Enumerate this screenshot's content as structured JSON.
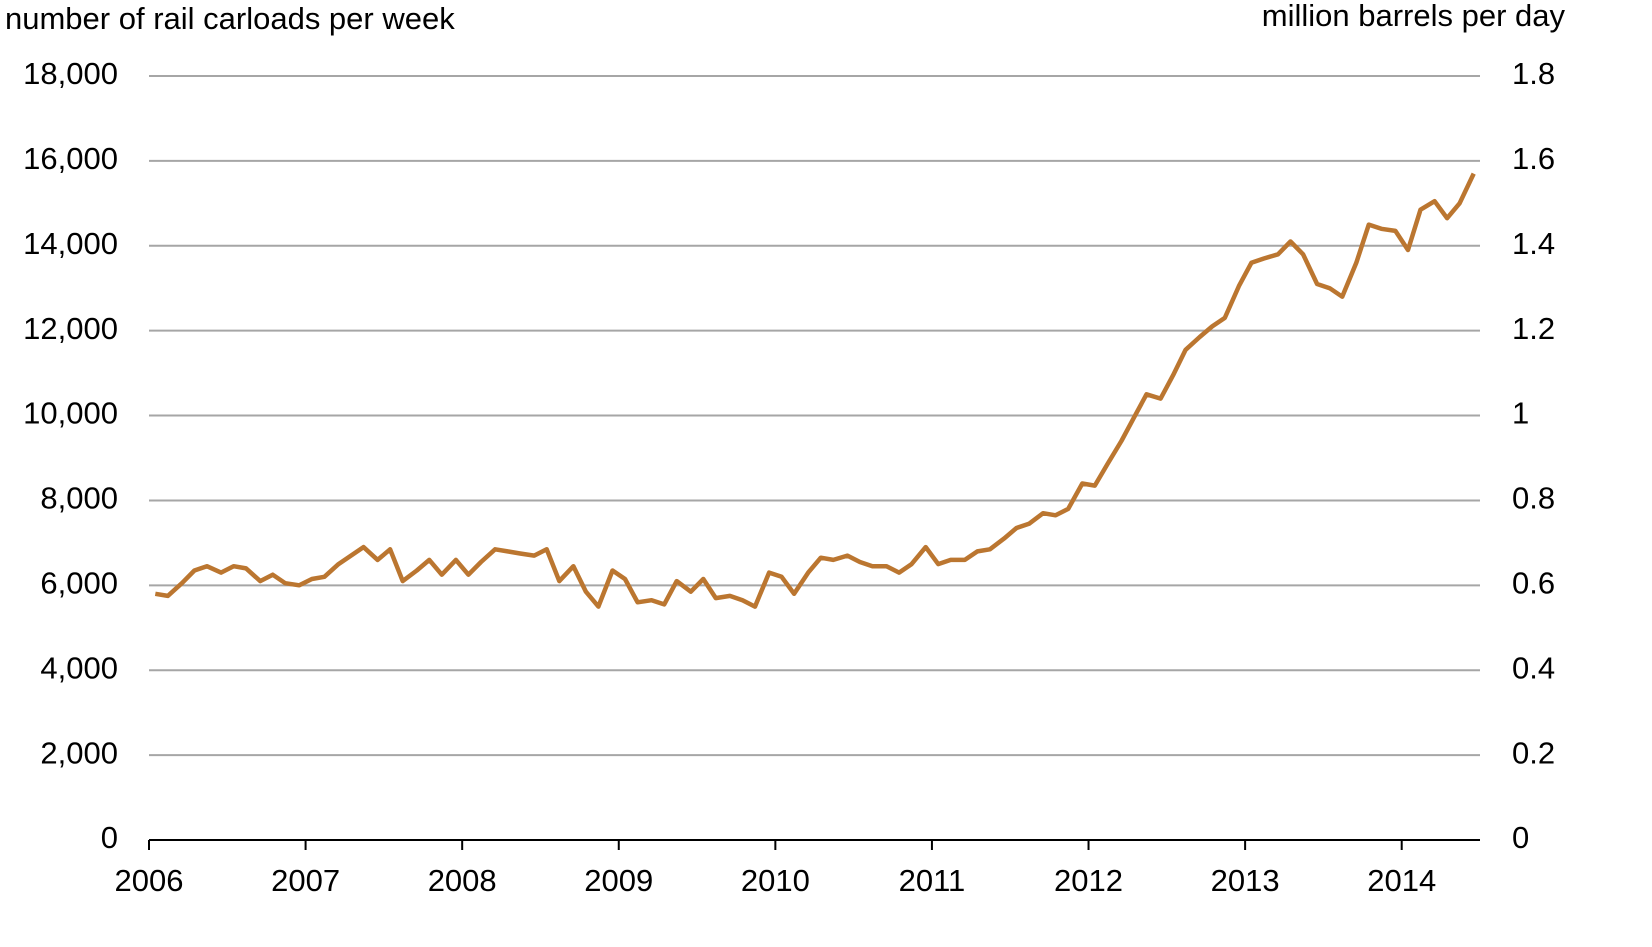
{
  "chart_data": {
    "type": "line",
    "y_label": "number of rail carloads per week",
    "y2_label": "million barrels per day",
    "x": [
      2006.04,
      2006.12,
      2006.21,
      2006.29,
      2006.37,
      2006.46,
      2006.54,
      2006.62,
      2006.71,
      2006.79,
      2006.87,
      2006.96,
      2007.04,
      2007.12,
      2007.21,
      2007.29,
      2007.37,
      2007.46,
      2007.54,
      2007.62,
      2007.71,
      2007.79,
      2007.87,
      2007.96,
      2008.04,
      2008.12,
      2008.21,
      2008.29,
      2008.37,
      2008.46,
      2008.54,
      2008.62,
      2008.71,
      2008.79,
      2008.87,
      2008.96,
      2009.04,
      2009.12,
      2009.21,
      2009.29,
      2009.37,
      2009.46,
      2009.54,
      2009.62,
      2009.71,
      2009.79,
      2009.87,
      2009.96,
      2010.04,
      2010.12,
      2010.21,
      2010.29,
      2010.37,
      2010.46,
      2010.54,
      2010.62,
      2010.71,
      2010.79,
      2010.87,
      2010.96,
      2011.04,
      2011.12,
      2011.21,
      2011.29,
      2011.37,
      2011.46,
      2011.54,
      2011.62,
      2011.71,
      2011.79,
      2011.87,
      2011.96,
      2012.04,
      2012.12,
      2012.21,
      2012.29,
      2012.37,
      2012.46,
      2012.54,
      2012.62,
      2012.71,
      2012.79,
      2012.87,
      2012.96,
      2013.04,
      2013.12,
      2013.21,
      2013.29,
      2013.37,
      2013.46,
      2013.54,
      2013.62,
      2013.71,
      2013.79,
      2013.87,
      2013.96,
      2014.04,
      2014.12,
      2014.21,
      2014.29,
      2014.37,
      2014.46
    ],
    "series": [
      {
        "color": "#bb7630",
        "values": [
          5800,
          5750,
          6050,
          6350,
          6450,
          6300,
          6450,
          6400,
          6100,
          6250,
          6050,
          6000,
          6150,
          6200,
          6500,
          6700,
          6900,
          6600,
          6850,
          6100,
          6350,
          6600,
          6250,
          6600,
          6250,
          6550,
          6850,
          6800,
          6750,
          6700,
          6850,
          6100,
          6450,
          5850,
          5500,
          6350,
          6150,
          5600,
          5650,
          5550,
          6100,
          5850,
          6150,
          5700,
          5750,
          5650,
          5500,
          6300,
          6200,
          5800,
          6300,
          6650,
          6600,
          6700,
          6550,
          6450,
          6450,
          6300,
          6500,
          6900,
          6500,
          6600,
          6600,
          6800,
          6850,
          7100,
          7350,
          7450,
          7700,
          7650,
          7800,
          8400,
          8350,
          8850,
          9400,
          9950,
          10500,
          10400,
          10950,
          11550,
          11850,
          12100,
          12300,
          13050,
          13600,
          13700,
          13800,
          14100,
          13800,
          13100,
          13000,
          12800,
          13600,
          14500,
          14400,
          14350,
          13900,
          14850,
          15050,
          14650,
          15000,
          15700
        ]
      }
    ],
    "xlim": [
      2006,
      2014.5
    ],
    "xticks": [
      2006,
      2007,
      2008,
      2009,
      2010,
      2011,
      2012,
      2013,
      2014
    ],
    "ylim": [
      0,
      18000
    ],
    "yticks": [
      0,
      {
        "value": 2000,
        "label": "2,000"
      },
      {
        "value": 4000,
        "label": "4,000"
      },
      {
        "value": 6000,
        "label": "6,000"
      },
      {
        "value": 8000,
        "label": "8,000"
      },
      {
        "value": 10000,
        "label": "10,000"
      },
      {
        "value": 12000,
        "label": "12,000"
      },
      {
        "value": 14000,
        "label": "14,000"
      },
      {
        "value": 16000,
        "label": "16,000"
      },
      {
        "value": 18000,
        "label": "18,000"
      }
    ],
    "y2lim": [
      0,
      1.8
    ],
    "y2ticks": [
      0,
      0.2,
      0.4,
      0.6,
      0.8,
      1,
      1.2,
      1.4,
      1.6,
      1.8
    ],
    "grid": true
  }
}
